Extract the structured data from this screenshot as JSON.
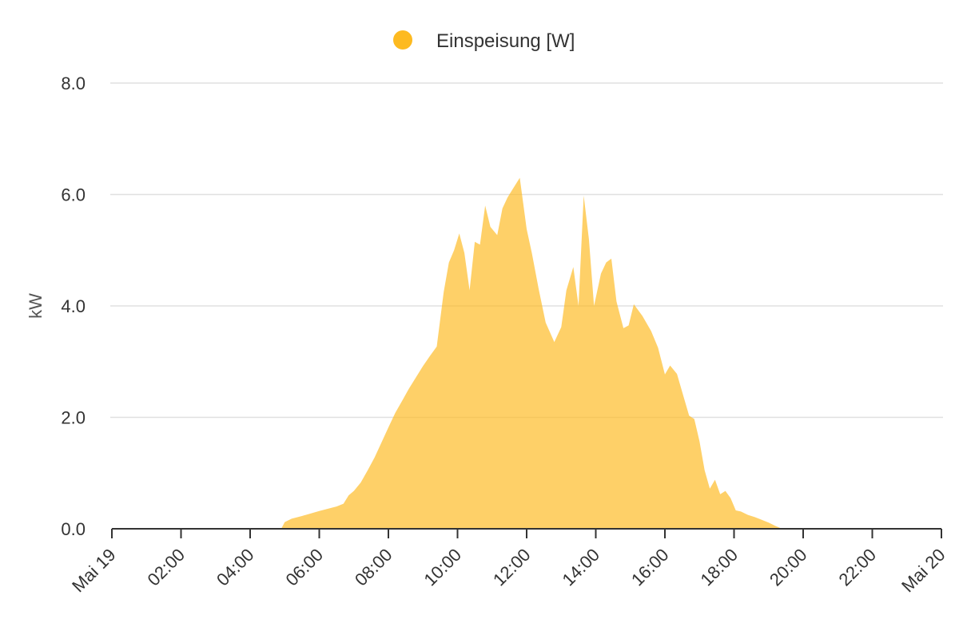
{
  "chart_data": {
    "type": "area",
    "legend": {
      "placement": "top-center"
    },
    "ylabel": "kW",
    "ylim": [
      0,
      8
    ],
    "y_ticks": [
      "0.0",
      "2.0",
      "4.0",
      "6.0",
      "8.0"
    ],
    "x_ticks": [
      "Mai 19",
      "02:00",
      "04:00",
      "06:00",
      "08:00",
      "10:00",
      "12:00",
      "14:00",
      "16:00",
      "18:00",
      "20:00",
      "22:00",
      "Mai 20"
    ],
    "grid": true,
    "series": [
      {
        "name": "Einspeisung [W]",
        "color": "#FDBA20",
        "x_hours": [
          4.9,
          5.0,
          5.2,
          5.5,
          6.0,
          6.5,
          6.7,
          6.85,
          7.0,
          7.2,
          7.4,
          7.6,
          7.8,
          8.0,
          8.2,
          8.4,
          8.6,
          8.8,
          9.0,
          9.2,
          9.4,
          9.6,
          9.75,
          9.9,
          10.05,
          10.2,
          10.35,
          10.5,
          10.65,
          10.8,
          10.95,
          11.15,
          11.3,
          11.45,
          11.6,
          11.8,
          12.0,
          12.15,
          12.35,
          12.55,
          12.8,
          13.0,
          13.15,
          13.35,
          13.5,
          13.65,
          13.8,
          13.95,
          14.15,
          14.3,
          14.45,
          14.6,
          14.8,
          14.95,
          15.1,
          15.35,
          15.6,
          15.8,
          16.0,
          16.15,
          16.35,
          16.55,
          16.7,
          16.85,
          17.0,
          17.15,
          17.3,
          17.45,
          17.6,
          17.75,
          17.9,
          18.05,
          18.2,
          18.4,
          18.6,
          18.8,
          19.0,
          19.2,
          19.35,
          19.45
        ],
        "y_kw": [
          0.0,
          0.12,
          0.18,
          0.23,
          0.32,
          0.4,
          0.45,
          0.6,
          0.68,
          0.83,
          1.05,
          1.28,
          1.55,
          1.82,
          2.08,
          2.3,
          2.52,
          2.72,
          2.92,
          3.1,
          3.27,
          4.25,
          4.78,
          5.0,
          5.3,
          4.95,
          4.28,
          5.15,
          5.1,
          5.8,
          5.42,
          5.27,
          5.75,
          5.95,
          6.1,
          6.3,
          5.38,
          4.95,
          4.3,
          3.7,
          3.35,
          3.62,
          4.28,
          4.7,
          4.0,
          5.98,
          5.2,
          4.0,
          4.58,
          4.78,
          4.85,
          4.08,
          3.6,
          3.65,
          4.03,
          3.82,
          3.55,
          3.25,
          2.77,
          2.93,
          2.78,
          2.35,
          2.03,
          1.97,
          1.57,
          1.05,
          0.72,
          0.88,
          0.62,
          0.68,
          0.55,
          0.33,
          0.31,
          0.25,
          0.21,
          0.16,
          0.11,
          0.05,
          0.01,
          0.0
        ]
      }
    ]
  }
}
